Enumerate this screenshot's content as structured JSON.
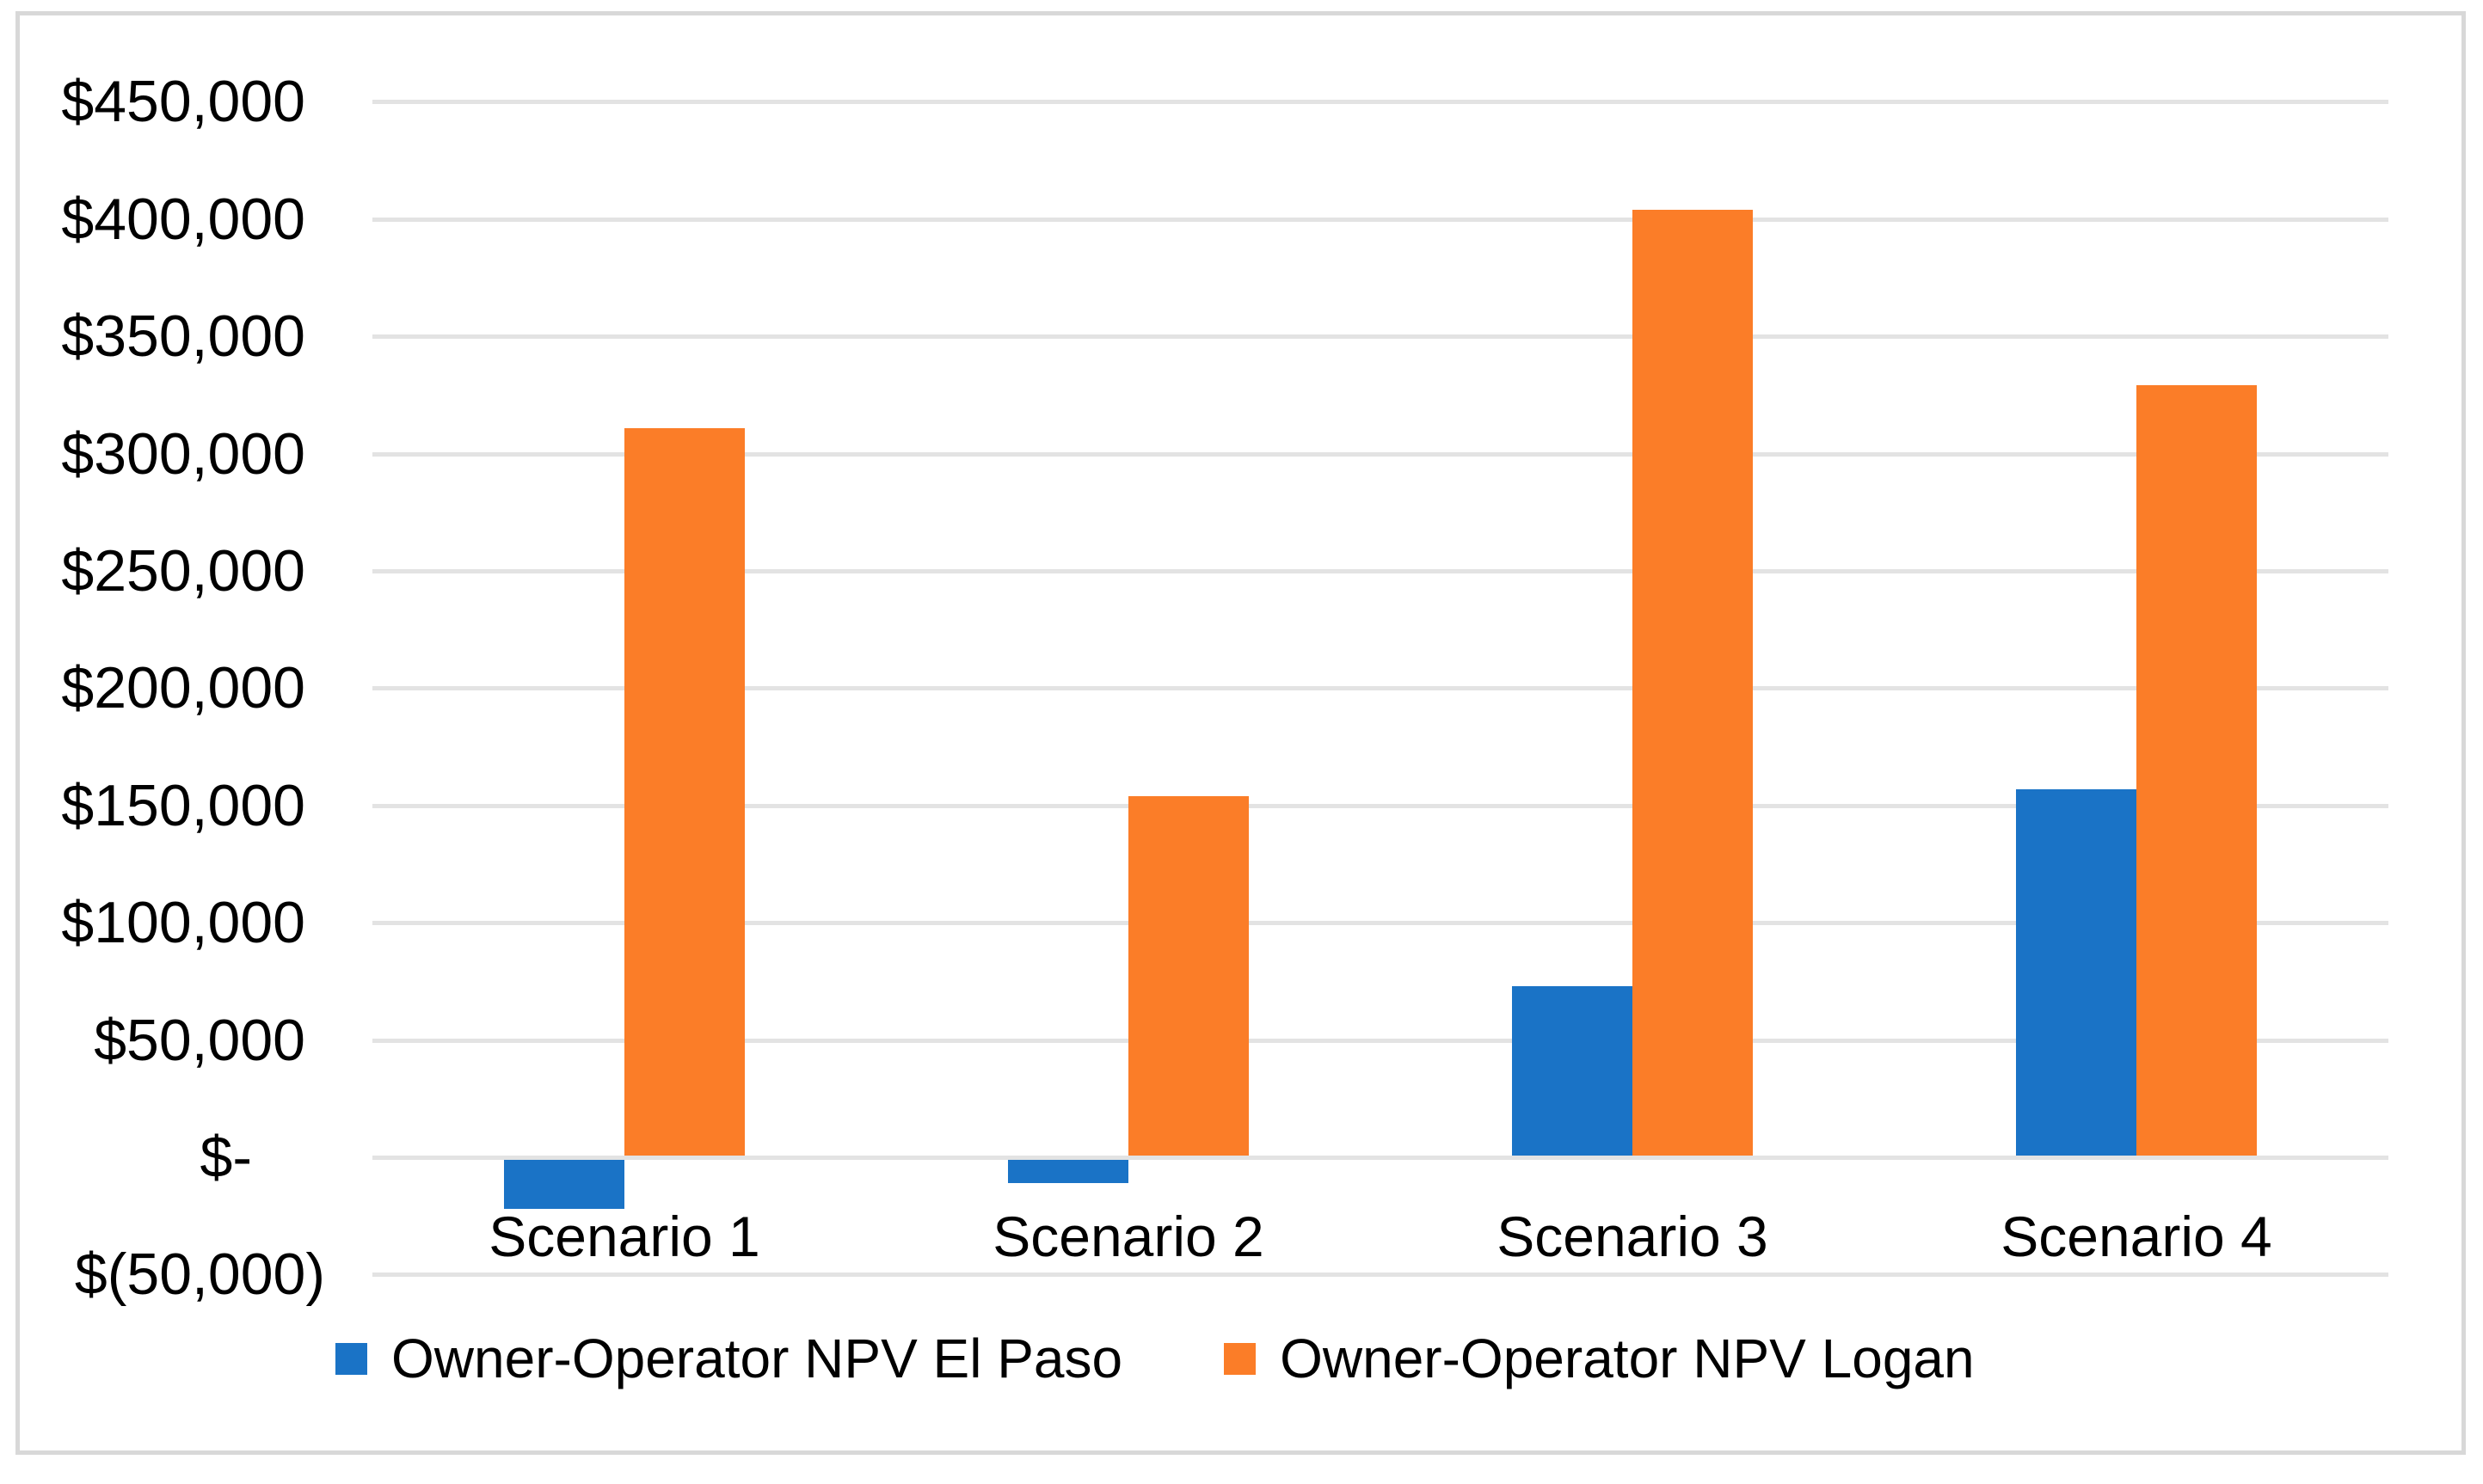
{
  "chart": {
    "background": "#FFFFFF",
    "frame_border_color": "#D8D8D8",
    "gridline_color": "#E3E3E3",
    "text_color": "#000000"
  },
  "chart_data": {
    "type": "bar",
    "title": "",
    "xlabel": "",
    "ylabel": "",
    "grid": true,
    "legend_position": "bottom",
    "categories": [
      "Scenario 1",
      "Scenario 2",
      "Scenario 3",
      "Scenario 4"
    ],
    "series": [
      {
        "name": "Owner-Operator NPV El Paso",
        "color": "#1A73C6",
        "values": [
          -22000,
          -11000,
          73000,
          157000
        ]
      },
      {
        "name": "Owner-Operator NPV Logan",
        "color": "#FB7D28",
        "values": [
          311000,
          154000,
          404000,
          329000
        ]
      }
    ],
    "ylim": [
      -50000,
      450000
    ],
    "ytick_step": 50000,
    "yticks": [
      {
        "value": 450000,
        "label": "$450,000"
      },
      {
        "value": 400000,
        "label": "$400,000"
      },
      {
        "value": 350000,
        "label": "$350,000"
      },
      {
        "value": 300000,
        "label": "$300,000"
      },
      {
        "value": 250000,
        "label": "$250,000"
      },
      {
        "value": 200000,
        "label": "$200,000"
      },
      {
        "value": 150000,
        "label": "$150,000"
      },
      {
        "value": 100000,
        "label": "$100,000"
      },
      {
        "value": 50000,
        "label": "$50,000"
      },
      {
        "value": 0,
        "label": "$-"
      },
      {
        "value": -50000,
        "label": "$(50,000)"
      }
    ]
  }
}
